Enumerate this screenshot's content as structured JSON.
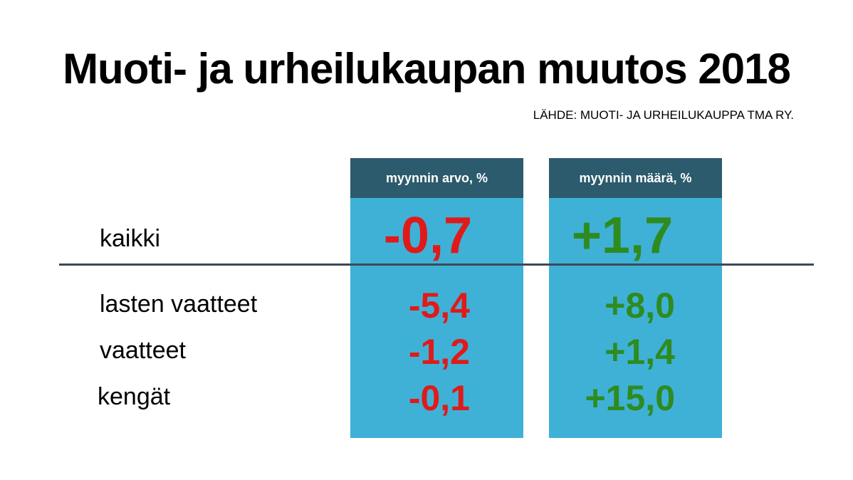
{
  "header": {
    "title": "Muoti- ja urheilukaupan muutos 2018",
    "source": "LÄHDE: MUOTI- JA URHEILUKAUPPA TMA RY."
  },
  "table": {
    "columns": [
      "myynnin arvo, %",
      "myynnin määrä, %"
    ],
    "rows": [
      {
        "label": "kaikki",
        "cells": [
          "-0,7",
          "+1,7"
        ]
      },
      {
        "label": "lasten vaatteet",
        "cells": [
          "-5,4",
          "+8,0"
        ]
      },
      {
        "label": "vaatteet",
        "cells": [
          "-1,2",
          "+1,4"
        ]
      },
      {
        "label": "kengät",
        "cells": [
          "-0,1",
          "+15,0"
        ]
      }
    ]
  }
}
